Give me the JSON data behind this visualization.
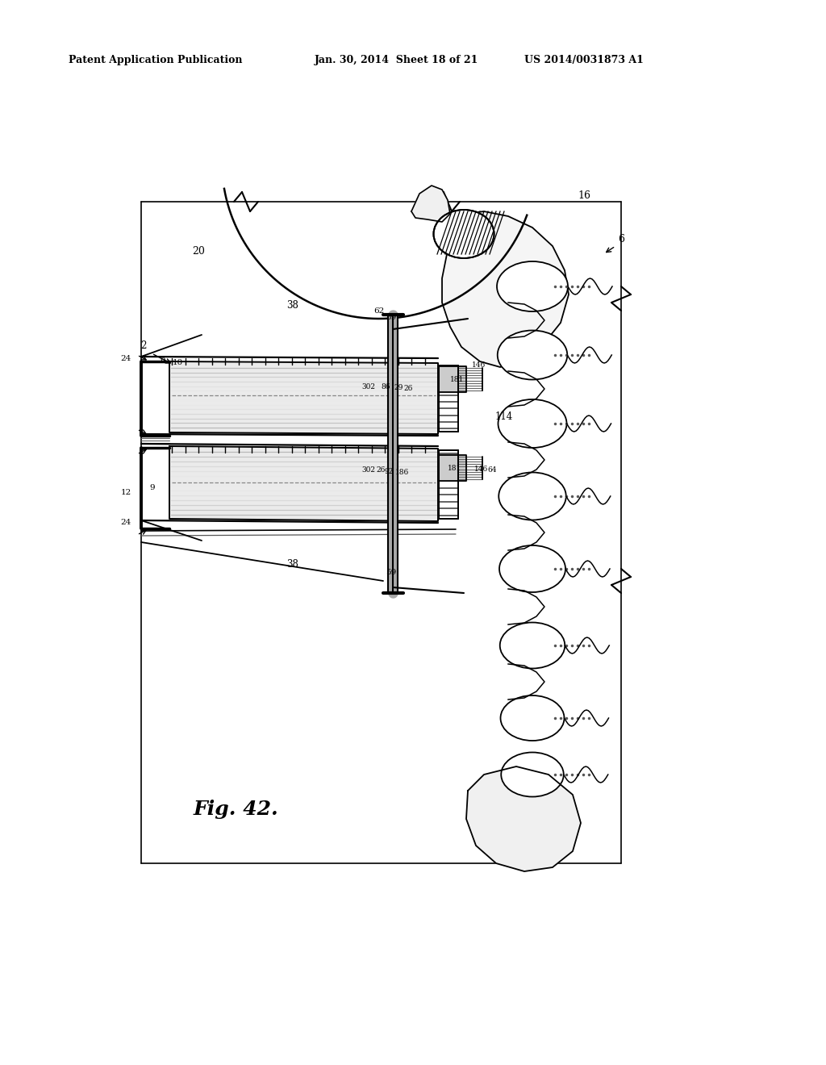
{
  "bg_color": "#ffffff",
  "header_left": "Patent Application Publication",
  "header_mid": "Jan. 30, 2014  Sheet 18 of 21",
  "header_right": "US 2014/0031873 A1",
  "fig_label": "Fig. 42."
}
